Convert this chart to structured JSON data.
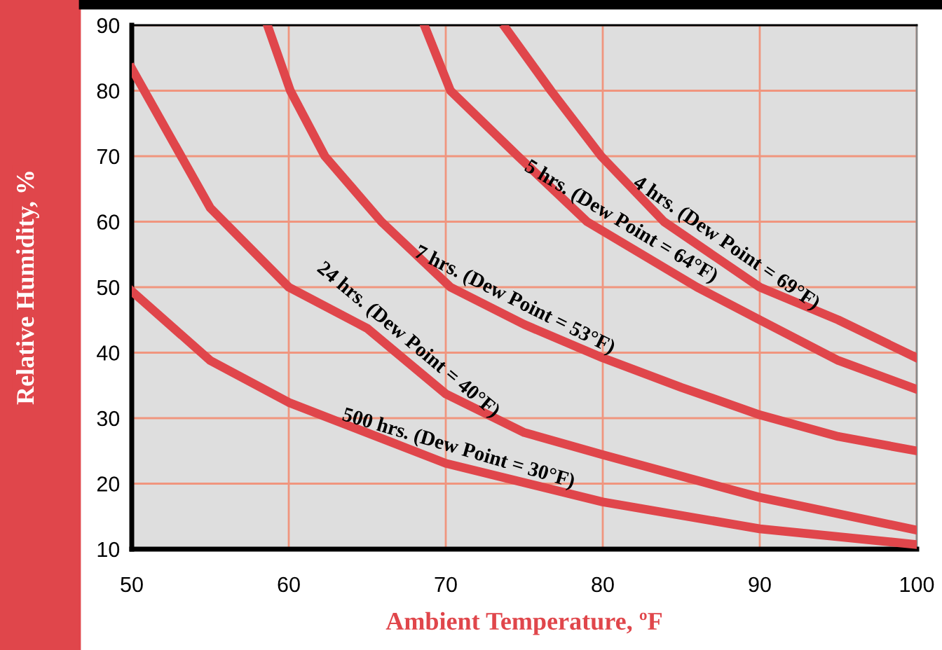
{
  "chart_data": {
    "type": "line",
    "xlabel": "Ambient Temperature, ºF",
    "ylabel": "Relative Humidity, %",
    "xlim": [
      50,
      100
    ],
    "ylim": [
      10,
      90
    ],
    "xticks": [
      50,
      60,
      70,
      80,
      90,
      100
    ],
    "yticks": [
      10,
      20,
      30,
      40,
      50,
      60,
      70,
      80,
      90
    ],
    "grid": true,
    "marker": "none",
    "line_style": "solid",
    "series": [
      {
        "color": "#e0464b",
        "x": [
          73.8,
          76.7,
          79.9,
          83.9,
          90.0,
          95,
          100
        ],
        "values": [
          89.6,
          80,
          70,
          60,
          50,
          45.0,
          39.2
        ]
      },
      {
        "color": "#e0464b",
        "x": [
          68.7,
          70.3,
          74.6,
          79.0,
          86.0,
          90,
          95,
          100
        ],
        "values": [
          89.6,
          80,
          70,
          60,
          50,
          45.0,
          38.8,
          34.4
        ]
      },
      {
        "color": "#e0464b",
        "x": [
          58.7,
          60.1,
          62.3,
          65.9,
          70.3,
          75,
          80,
          85,
          90,
          95,
          100
        ],
        "values": [
          89.6,
          80,
          70,
          60,
          50,
          44.3,
          39.2,
          34.7,
          30.5,
          27.2,
          25.0
        ]
      },
      {
        "color": "#e0464b",
        "x": [
          50,
          55,
          60,
          65,
          70,
          75,
          80,
          90,
          100
        ],
        "values": [
          83.4,
          62.1,
          50,
          43.7,
          33.7,
          27.8,
          24.4,
          17.9,
          12.9
        ]
      },
      {
        "color": "#e0464b",
        "x": [
          50,
          55,
          60,
          70,
          80,
          90,
          100
        ],
        "values": [
          49.4,
          38.8,
          32.4,
          23.1,
          17.2,
          13.1,
          10.7
        ]
      }
    ],
    "annotations": [
      "4 hrs. (Dew Point = 69°F)",
      "5 hrs. (Dew Point = 64°F)",
      "7 hrs. (Dew Point = 53°F)",
      "24 hrs. (Dew Point = 40°F)",
      "500 hrs. (Dew Point = 30°F)"
    ]
  }
}
